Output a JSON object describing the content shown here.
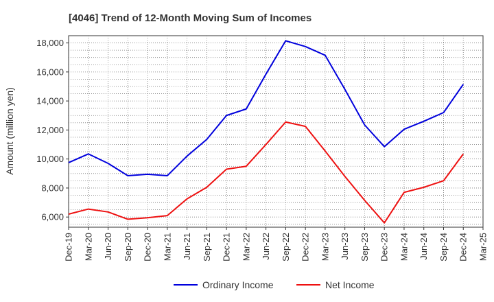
{
  "chart_data": {
    "type": "line",
    "title": "[4046]  Trend of 12-Month Moving Sum of Incomes",
    "ylabel": "Amount (million yen)",
    "xlabel": "",
    "categories": [
      "Dec-19",
      "Mar-20",
      "Jun-20",
      "Sep-20",
      "Dec-20",
      "Mar-21",
      "Jun-21",
      "Sep-21",
      "Dec-21",
      "Mar-22",
      "Jun-22",
      "Sep-22",
      "Dec-22",
      "Mar-23",
      "Jun-23",
      "Sep-23",
      "Dec-23",
      "Mar-24",
      "Jun-24",
      "Sep-24",
      "Dec-24",
      "Mar-25"
    ],
    "y_ticks": [
      "6,000",
      "8,000",
      "10,000",
      "12,000",
      "14,000",
      "16,000",
      "18,000"
    ],
    "ylim": [
      5300,
      18500
    ],
    "grid": true,
    "legend_position": "bottom",
    "series": [
      {
        "name": "Ordinary Income",
        "color": "#0000dd",
        "values": [
          9750,
          10350,
          9700,
          8850,
          8950,
          8850,
          10200,
          11350,
          13000,
          13450,
          15850,
          18150,
          17750,
          17150,
          14800,
          12350,
          10850,
          12050,
          12600,
          13200,
          15150,
          null
        ]
      },
      {
        "name": "Net Income",
        "color": "#ee1111",
        "values": [
          6200,
          6550,
          6350,
          5850,
          5950,
          6100,
          7250,
          8050,
          9300,
          9500,
          11000,
          12550,
          12250,
          10550,
          8800,
          7150,
          5600,
          7700,
          8050,
          8500,
          10350,
          null
        ]
      }
    ]
  }
}
